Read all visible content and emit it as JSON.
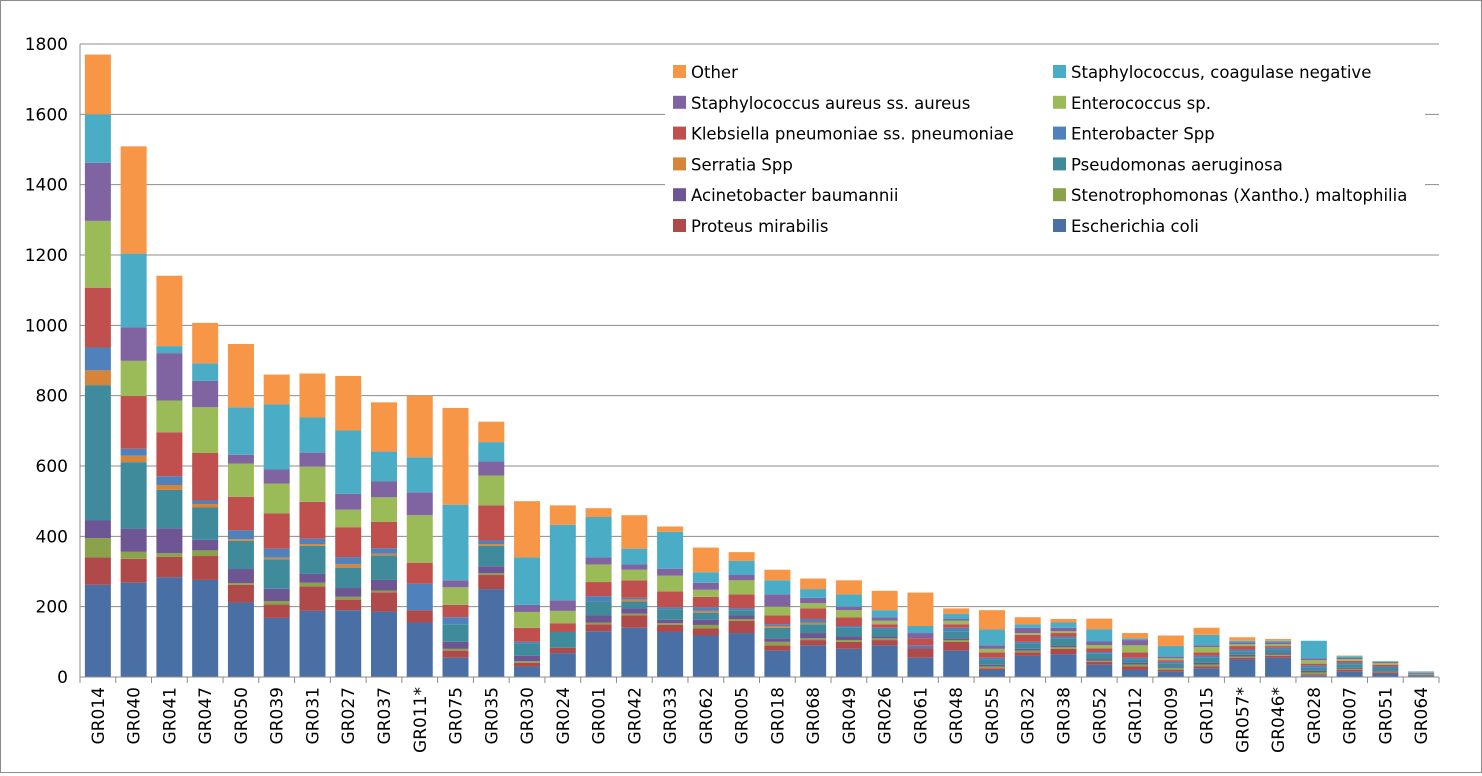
{
  "chart_data": {
    "type": "bar",
    "stacked": true,
    "ylim": [
      0,
      1800
    ],
    "yticks": [
      "0",
      "200",
      "400",
      "600",
      "800",
      "1000",
      "1200",
      "1400",
      "1600",
      "1800"
    ],
    "grid": "horizontal",
    "legend_position": "top-right",
    "categories": [
      "GR014",
      "GR040",
      "GR041",
      "GR047",
      "GR050",
      "GR039",
      "GR031",
      "GR027",
      "GR037",
      "GR011*",
      "GR075",
      "GR035",
      "GR030",
      "GR024",
      "GR001",
      "GR042",
      "GR033",
      "GR062",
      "GR005",
      "GR018",
      "GR068",
      "GR049",
      "GR026",
      "GR061",
      "GR048",
      "GR055",
      "GR032",
      "GR038",
      "GR052",
      "GR012",
      "GR009",
      "GR015",
      "GR057*",
      "GR046*",
      "GR028",
      "GR007",
      "GR051",
      "GR064"
    ],
    "series": [
      {
        "name": "Escherichia coli",
        "color": "#4a6fa5",
        "values": [
          262,
          268,
          284,
          276,
          212,
          168,
          188,
          190,
          186,
          155,
          55,
          250,
          30,
          68,
          130,
          140,
          128,
          118,
          125,
          75,
          90,
          80,
          90,
          55,
          75,
          20,
          60,
          65,
          35,
          20,
          15,
          25,
          50,
          55,
          5,
          15,
          10,
          5
        ]
      },
      {
        "name": "Proteus mirabilis",
        "color": "#b04a4a",
        "values": [
          78,
          68,
          58,
          68,
          50,
          38,
          70,
          30,
          55,
          35,
          20,
          40,
          10,
          15,
          20,
          35,
          20,
          20,
          35,
          15,
          15,
          20,
          15,
          25,
          25,
          5,
          10,
          15,
          8,
          10,
          5,
          5,
          5,
          5,
          3,
          5,
          3,
          1
        ]
      },
      {
        "name": "Stenotrophomonas (Xantho.) maltophilia",
        "color": "#8aa34a",
        "values": [
          55,
          20,
          10,
          16,
          5,
          10,
          10,
          8,
          5,
          0,
          5,
          5,
          5,
          0,
          5,
          5,
          5,
          10,
          5,
          10,
          5,
          5,
          5,
          0,
          5,
          5,
          5,
          5,
          3,
          5,
          5,
          5,
          3,
          3,
          5,
          3,
          2,
          1
        ]
      },
      {
        "name": "Acinetobacter baumannii",
        "color": "#6e5593",
        "values": [
          50,
          65,
          70,
          30,
          40,
          35,
          25,
          25,
          30,
          0,
          20,
          20,
          15,
          0,
          20,
          15,
          10,
          15,
          10,
          10,
          15,
          10,
          5,
          5,
          5,
          5,
          5,
          5,
          5,
          5,
          3,
          5,
          5,
          5,
          5,
          3,
          2,
          1
        ]
      },
      {
        "name": "Pseudomonas aeruginosa",
        "color": "#3f8b9c",
        "values": [
          385,
          190,
          110,
          92,
          80,
          84,
          80,
          58,
          70,
          0,
          50,
          58,
          35,
          45,
          40,
          20,
          30,
          20,
          15,
          30,
          25,
          25,
          20,
          0,
          20,
          15,
          15,
          20,
          15,
          10,
          10,
          15,
          10,
          10,
          10,
          10,
          10,
          3
        ]
      },
      {
        "name": "Serratia Spp",
        "color": "#d5843a",
        "values": [
          42,
          18,
          14,
          10,
          5,
          5,
          5,
          10,
          5,
          0,
          0,
          5,
          0,
          0,
          0,
          5,
          0,
          5,
          0,
          5,
          5,
          0,
          0,
          0,
          0,
          0,
          0,
          0,
          0,
          0,
          0,
          0,
          0,
          0,
          0,
          0,
          0,
          0
        ]
      },
      {
        "name": "Enterobacter Spp",
        "color": "#4f81bd",
        "values": [
          65,
          20,
          25,
          10,
          25,
          25,
          15,
          20,
          15,
          75,
          20,
          10,
          5,
          0,
          15,
          5,
          5,
          10,
          5,
          5,
          10,
          5,
          5,
          5,
          10,
          5,
          5,
          5,
          5,
          5,
          5,
          5,
          5,
          5,
          5,
          5,
          3,
          1
        ]
      },
      {
        "name": "Klebsiella pneumoniae ss. pneumoniae",
        "color": "#c0504d",
        "values": [
          170,
          150,
          125,
          135,
          95,
          100,
          105,
          85,
          75,
          60,
          35,
          100,
          40,
          25,
          40,
          50,
          45,
          30,
          40,
          25,
          30,
          25,
          10,
          20,
          10,
          15,
          20,
          10,
          10,
          15,
          5,
          10,
          10,
          5,
          5,
          5,
          5,
          1
        ]
      },
      {
        "name": "Enterococcus sp.",
        "color": "#9bbb59",
        "values": [
          190,
          100,
          90,
          130,
          95,
          85,
          100,
          50,
          70,
          135,
          50,
          85,
          45,
          35,
          50,
          30,
          45,
          20,
          40,
          25,
          15,
          20,
          10,
          0,
          10,
          10,
          5,
          5,
          10,
          20,
          5,
          15,
          5,
          5,
          10,
          5,
          5,
          1
        ]
      },
      {
        "name": "Staphylococcus aureus ss. aureus",
        "color": "#8064a2",
        "values": [
          165,
          95,
          135,
          75,
          25,
          40,
          40,
          45,
          45,
          65,
          20,
          40,
          20,
          30,
          20,
          15,
          20,
          20,
          15,
          35,
          15,
          10,
          10,
          15,
          5,
          10,
          15,
          10,
          10,
          15,
          5,
          5,
          5,
          5,
          5,
          3,
          3,
          1
        ]
      },
      {
        "name": "Staphylococcus, coagulase negative",
        "color": "#4bacc6",
        "values": [
          138,
          210,
          20,
          50,
          135,
          185,
          100,
          180,
          85,
          100,
          215,
          55,
          135,
          215,
          115,
          45,
          105,
          30,
          40,
          40,
          25,
          35,
          20,
          20,
          15,
          45,
          10,
          15,
          35,
          5,
          30,
          30,
          5,
          5,
          50,
          5,
          2,
          1
        ]
      },
      {
        "name": "Other",
        "color": "#f79646",
        "values": [
          170,
          305,
          200,
          115,
          180,
          85,
          125,
          155,
          140,
          175,
          275,
          58,
          160,
          55,
          25,
          95,
          15,
          70,
          25,
          30,
          30,
          40,
          55,
          95,
          15,
          55,
          20,
          10,
          30,
          15,
          30,
          20,
          10,
          5,
          0,
          2,
          0,
          0
        ]
      }
    ]
  }
}
